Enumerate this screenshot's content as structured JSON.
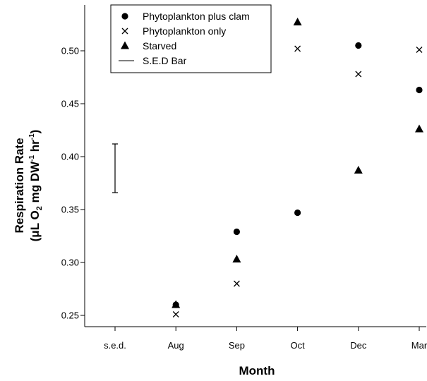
{
  "chart_data": {
    "type": "scatter",
    "title": "",
    "xlabel": "Month",
    "ylabel_line1": "Respiration Rate",
    "ylabel_line2": {
      "part1": "(μL O",
      "sub": "2",
      "part2": " mg DW",
      "sup1": "-1",
      "part3": " hr",
      "sup2": "-1",
      "part4": ")"
    },
    "categories": [
      "s.e.d.",
      "Aug",
      "Sep",
      "Oct",
      "Dec",
      "Mar"
    ],
    "ylim": [
      0.24,
      0.54
    ],
    "yticks": [
      0.25,
      0.3,
      0.35,
      0.4,
      0.45,
      0.5
    ],
    "ytick_labels": [
      "0.25",
      "0.30",
      "0.35",
      "0.40",
      "0.45",
      "0.50"
    ],
    "grid": false,
    "legend_position": "top-left",
    "legend": [
      "Phytoplankton plus clam",
      "Phytoplankton only",
      "Starved",
      "S.E.D Bar"
    ],
    "series": [
      {
        "name": "Phytoplankton plus clam",
        "marker": "circle",
        "points": [
          [
            "Aug",
            0.26
          ],
          [
            "Sep",
            0.329
          ],
          [
            "Oct",
            0.347
          ],
          [
            "Dec",
            0.505
          ],
          [
            "Mar",
            0.463
          ]
        ]
      },
      {
        "name": "Phytoplankton only",
        "marker": "x",
        "points": [
          [
            "Aug",
            0.251
          ],
          [
            "Sep",
            0.28
          ],
          [
            "Oct",
            0.502
          ],
          [
            "Dec",
            0.478
          ],
          [
            "Mar",
            0.501
          ]
        ]
      },
      {
        "name": "Starved",
        "marker": "triangle",
        "points": [
          [
            "Aug",
            0.26
          ],
          [
            "Sep",
            0.303
          ],
          [
            "Oct",
            0.527
          ],
          [
            "Dec",
            0.387
          ],
          [
            "Mar",
            0.426
          ]
        ]
      }
    ],
    "sed_bar": {
      "category": "s.e.d.",
      "low": 0.366,
      "high": 0.412
    }
  }
}
